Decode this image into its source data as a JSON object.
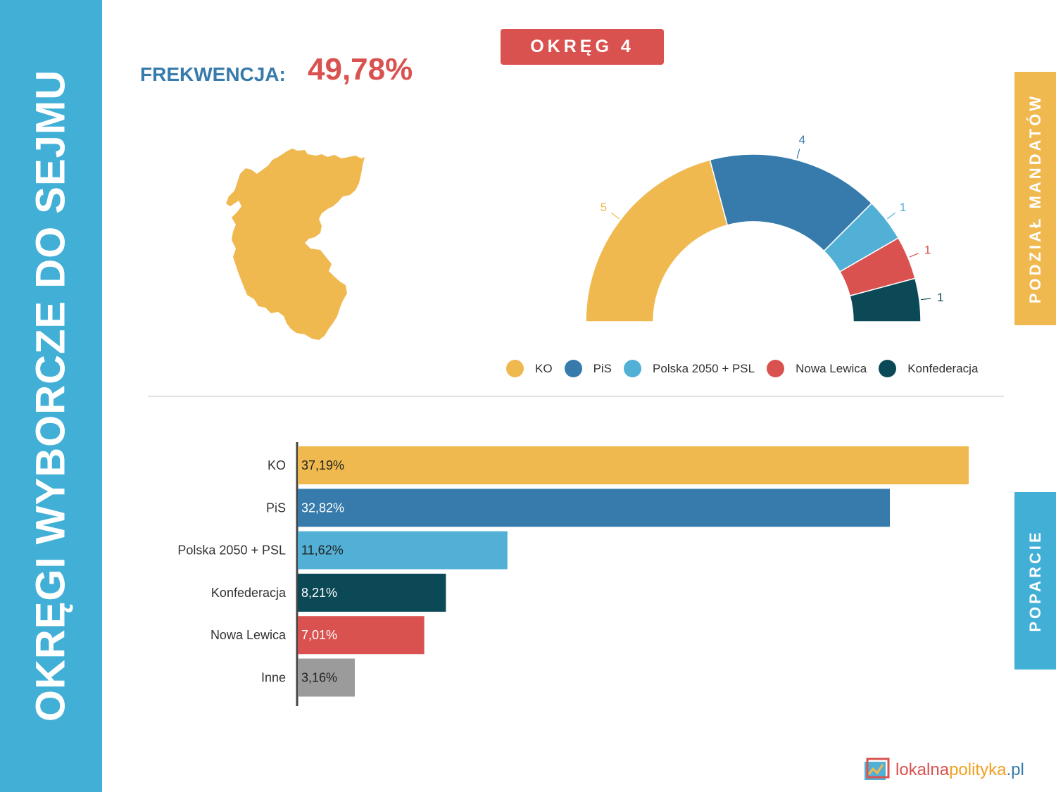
{
  "side_title": "OKRĘGI WYBORCZE DO SEJMU",
  "district_badge": "OKRĘG 4",
  "turnout": {
    "label": "FREKWENCJA:",
    "value": "49,78%"
  },
  "tabs": {
    "seats": "PODZIAŁ MANDATÓW",
    "support": "POPARCIE"
  },
  "logo": {
    "part1": "lokalna",
    "part2": "polityka",
    "part3": ".pl"
  },
  "colors": {
    "KO": "#f0b94f",
    "PiS": "#367bab",
    "Polska 2050 + PSL": "#52b0d6",
    "Nowa Lewica": "#da5250",
    "Konfederacja": "#0b4956",
    "Inne": "#9b9b9b",
    "band": "#41afd6"
  },
  "chart_data": [
    {
      "type": "pie",
      "variant": "half-donut",
      "categories": [
        "KO",
        "PiS",
        "Polska 2050 + PSL",
        "Nowa Lewica",
        "Konfederacja"
      ],
      "values": [
        5,
        4,
        1,
        1,
        1
      ],
      "data_labels": [
        "5",
        "4",
        "1",
        "1",
        "1"
      ],
      "legend": [
        "KO",
        "PiS",
        "Polska 2050 + PSL",
        "Nowa Lewica",
        "Konfederacja"
      ],
      "legend_position": "bottom-right"
    },
    {
      "type": "bar",
      "orientation": "horizontal",
      "categories": [
        "KO",
        "PiS",
        "Polska 2050 + PSL",
        "Konfederacja",
        "Nowa Lewica",
        "Inne"
      ],
      "values": [
        37.19,
        32.82,
        11.62,
        8.21,
        7.01,
        3.16
      ],
      "data_labels": [
        "37,19%",
        "32,82%",
        "11,62%",
        "8,21%",
        "7,01%",
        "3,16%"
      ],
      "label_colors": [
        "#222222",
        "#ffffff",
        "#222222",
        "#ffffff",
        "#ffffff",
        "#222222"
      ],
      "xlim": [
        0,
        37.19
      ]
    }
  ]
}
